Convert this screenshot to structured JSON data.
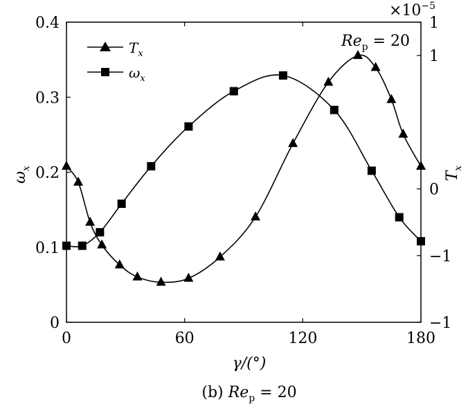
{
  "chart_data": {
    "type": "line",
    "xlabel": "γ/(°)",
    "xlim": [
      0,
      180
    ],
    "xticks": [
      "0",
      "60",
      "120",
      "180"
    ],
    "ylabel_left": "ω_x",
    "ylim_left": [
      0,
      0.4
    ],
    "yticks_left": [
      "0",
      "0.1",
      "0.2",
      "0.3",
      "0.4"
    ],
    "ylabel_right": "T_x",
    "ylim_right": [
      -1,
      1.25
    ],
    "yticks_right": [
      "−1",
      "−1",
      "0",
      "1",
      "1"
    ],
    "right_multiplier": "×10",
    "right_exponent": "−5",
    "annotation": {
      "base": "Re",
      "sub": "p",
      "rest": " = 20"
    },
    "caption": {
      "prefix": "(b) ",
      "base": "Re",
      "sub": "p",
      "rest": " = 20"
    },
    "legend_position": "top-left",
    "series": [
      {
        "name": "T_x",
        "label_base": "T",
        "label_sub": "x",
        "axis": "right",
        "marker": "triangle",
        "x": [
          0,
          6,
          12,
          18,
          27,
          36,
          48,
          62,
          78,
          96,
          115,
          133,
          148,
          157,
          165,
          171,
          180
        ],
        "y": [
          0.17,
          0.05,
          -0.25,
          -0.42,
          -0.57,
          -0.66,
          -0.7,
          -0.67,
          -0.51,
          -0.21,
          0.34,
          0.8,
          1.0,
          0.91,
          0.67,
          0.41,
          0.17
        ]
      },
      {
        "name": "ω_x",
        "label_base": "ω",
        "label_sub": "x",
        "axis": "left",
        "marker": "square",
        "x": [
          0,
          8,
          17,
          28,
          43,
          62,
          85,
          110,
          136,
          155,
          169,
          180
        ],
        "y": [
          0.102,
          0.102,
          0.12,
          0.158,
          0.208,
          0.261,
          0.308,
          0.329,
          0.283,
          0.202,
          0.14,
          0.108
        ]
      }
    ]
  }
}
